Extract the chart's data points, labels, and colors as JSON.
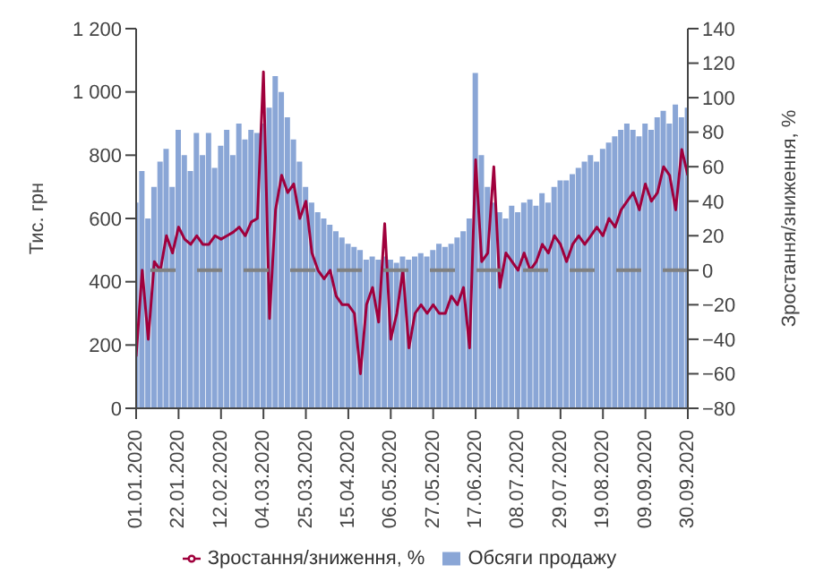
{
  "chart_data": {
    "type": "bar",
    "ylabel": "Тис. грн",
    "y2label": "Зростання/зниження, %",
    "x": [
      "2020-01-01",
      "2020-01-04",
      "2020-01-07",
      "2020-01-10",
      "2020-01-13",
      "2020-01-16",
      "2020-01-19",
      "2020-01-22",
      "2020-01-25",
      "2020-01-28",
      "2020-01-31",
      "2020-02-03",
      "2020-02-06",
      "2020-02-09",
      "2020-02-12",
      "2020-02-15",
      "2020-02-18",
      "2020-02-21",
      "2020-02-24",
      "2020-02-27",
      "2020-03-01",
      "2020-03-04",
      "2020-03-07",
      "2020-03-10",
      "2020-03-13",
      "2020-03-16",
      "2020-03-19",
      "2020-03-22",
      "2020-03-25",
      "2020-03-28",
      "2020-03-31",
      "2020-04-03",
      "2020-04-06",
      "2020-04-09",
      "2020-04-12",
      "2020-04-15",
      "2020-04-18",
      "2020-04-21",
      "2020-04-24",
      "2020-04-27",
      "2020-04-30",
      "2020-05-03",
      "2020-05-06",
      "2020-05-09",
      "2020-05-12",
      "2020-05-15",
      "2020-05-18",
      "2020-05-21",
      "2020-05-24",
      "2020-05-27",
      "2020-05-30",
      "2020-06-02",
      "2020-06-05",
      "2020-06-08",
      "2020-06-11",
      "2020-06-14",
      "2020-06-17",
      "2020-06-20",
      "2020-06-23",
      "2020-06-26",
      "2020-06-29",
      "2020-07-02",
      "2020-07-05",
      "2020-07-08",
      "2020-07-11",
      "2020-07-14",
      "2020-07-17",
      "2020-07-20",
      "2020-07-23",
      "2020-07-26",
      "2020-07-29",
      "2020-08-01",
      "2020-08-04",
      "2020-08-07",
      "2020-08-10",
      "2020-08-13",
      "2020-08-16",
      "2020-08-19",
      "2020-08-22",
      "2020-08-25",
      "2020-08-28",
      "2020-08-31",
      "2020-09-03",
      "2020-09-06",
      "2020-09-09",
      "2020-09-12",
      "2020-09-15",
      "2020-09-18",
      "2020-09-21",
      "2020-09-24",
      "2020-09-27",
      "2020-09-30"
    ],
    "series": [
      {
        "name": "Обсяги продажу",
        "color": "#8aa6d6",
        "values": [
          650,
          750,
          600,
          700,
          780,
          820,
          700,
          880,
          800,
          750,
          870,
          800,
          870,
          760,
          830,
          880,
          800,
          900,
          850,
          880,
          870,
          900,
          950,
          1050,
          1000,
          920,
          850,
          780,
          700,
          650,
          620,
          600,
          580,
          560,
          540,
          520,
          510,
          500,
          470,
          480,
          470,
          480,
          470,
          460,
          480,
          470,
          480,
          490,
          480,
          500,
          520,
          510,
          520,
          540,
          560,
          600,
          1060,
          800,
          700,
          650,
          620,
          600,
          640,
          620,
          650,
          660,
          640,
          680,
          650,
          700,
          720,
          720,
          740,
          760,
          780,
          800,
          780,
          820,
          840,
          860,
          880,
          900,
          880,
          860,
          900,
          880,
          920,
          940,
          900,
          960,
          920,
          950
        ]
      },
      {
        "name": "Зростання/зниження, %",
        "type": "line",
        "axis": "y2",
        "color": "#a0003c",
        "values": [
          -50,
          0,
          -40,
          5,
          0,
          20,
          10,
          25,
          18,
          15,
          20,
          15,
          15,
          20,
          18,
          20,
          22,
          25,
          20,
          28,
          30,
          115,
          -28,
          35,
          55,
          45,
          50,
          30,
          40,
          10,
          0,
          -5,
          0,
          -15,
          -20,
          -20,
          -25,
          -60,
          -20,
          -10,
          -30,
          27,
          -40,
          -25,
          0,
          -45,
          -25,
          -20,
          -25,
          -20,
          -25,
          -25,
          -15,
          -20,
          -10,
          -45,
          64,
          5,
          10,
          60,
          -10,
          10,
          5,
          0,
          10,
          0,
          5,
          15,
          10,
          20,
          15,
          5,
          15,
          20,
          15,
          20,
          25,
          20,
          30,
          25,
          35,
          40,
          45,
          35,
          50,
          40,
          45,
          60,
          55,
          35,
          70,
          55
        ]
      }
    ],
    "xlim": [
      "2020-01-01",
      "2020-09-30"
    ],
    "xticks": [
      {
        "value": "2020-01-01",
        "label": "01.01.2020"
      },
      {
        "value": "2020-01-22",
        "label": "22.01.2020"
      },
      {
        "value": "2020-02-12",
        "label": "12.02.2020"
      },
      {
        "value": "2020-03-04",
        "label": "04.03.2020"
      },
      {
        "value": "2020-03-25",
        "label": "25.03.2020"
      },
      {
        "value": "2020-04-15",
        "label": "15.04.2020"
      },
      {
        "value": "2020-05-06",
        "label": "06.05.2020"
      },
      {
        "value": "2020-05-27",
        "label": "27.05.2020"
      },
      {
        "value": "2020-06-17",
        "label": "17.06.2020"
      },
      {
        "value": "2020-07-08",
        "label": "08.07.2020"
      },
      {
        "value": "2020-07-29",
        "label": "29.07.2020"
      },
      {
        "value": "2020-08-19",
        "label": "19.08.2020"
      },
      {
        "value": "2020-09-09",
        "label": "09.09.2020"
      },
      {
        "value": "2020-09-30",
        "label": "30.09.2020"
      }
    ],
    "ylim": [
      0,
      1200
    ],
    "yticks": [
      0,
      200,
      400,
      600,
      800,
      {
        "value": 1000,
        "label": "1 000"
      },
      {
        "value": 1200,
        "label": "1 200"
      }
    ],
    "y2lim": [
      -80,
      140
    ],
    "y2ticks": [
      {
        "value": -80,
        "label": "−80"
      },
      {
        "value": -60,
        "label": "−60"
      },
      {
        "value": -40,
        "label": "−40"
      },
      {
        "value": -20,
        "label": "−20"
      },
      0,
      20,
      40,
      60,
      80,
      100,
      120,
      140
    ],
    "ref_lines": [
      {
        "axis": "y2",
        "value": 0,
        "color": "#808080",
        "line_style": "dashed"
      }
    ],
    "legend": "bottom",
    "grid": false
  }
}
